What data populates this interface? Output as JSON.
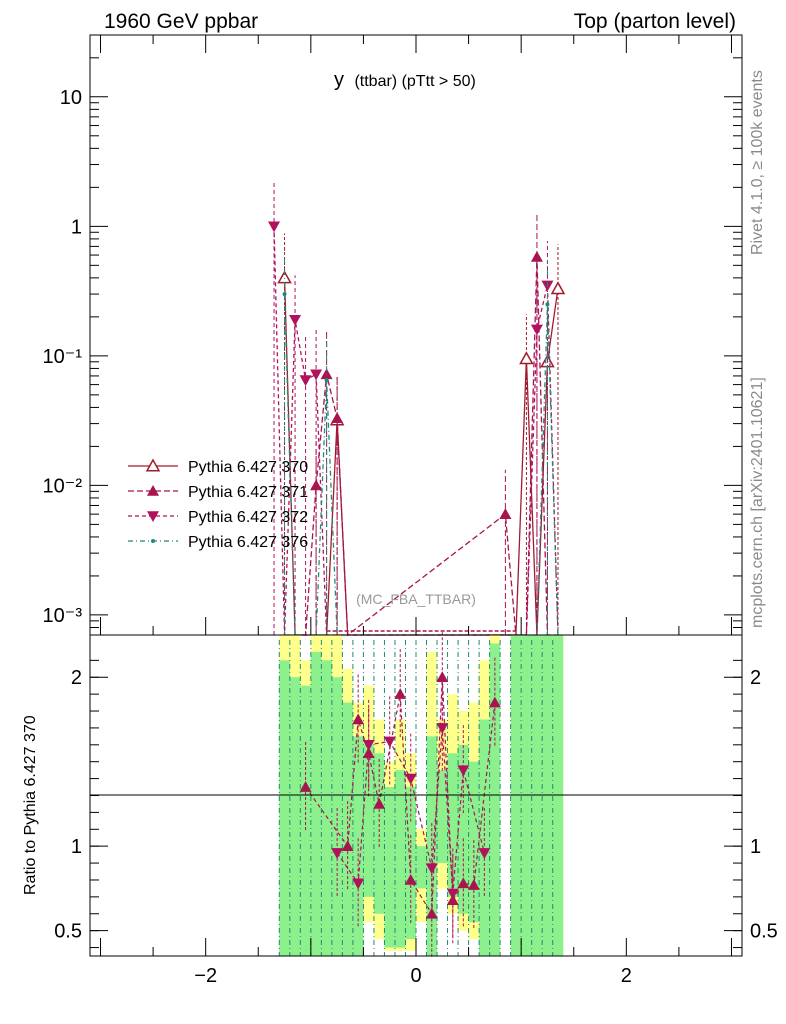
{
  "header": {
    "left": "1960 GeV ppbar",
    "right": "Top (parton level)"
  },
  "plot_title": {
    "main": "y",
    "sub": "(ttbar)  (pTtt > 50)"
  },
  "side_labels": {
    "rivet": "Rivet 4.1.0, ≥ 100k events",
    "mcplots": "mcplots.cern.ch [arXiv:2401.10621]"
  },
  "watermark": "(MC_FBA_TTBAR)",
  "ratio_ylabel": "Ratio to Pythia 6.427 370",
  "colors": {
    "s370": "#a01c2c",
    "s371": "#a8144e",
    "s372": "#b0125e",
    "s376": "#1f8a7a",
    "band_yellow": "#ffff8c",
    "band_green": "#8cf08c"
  },
  "chart_data": [
    {
      "type": "line",
      "panel": "main",
      "yscale": "log",
      "xlim": [
        -3.1,
        3.1
      ],
      "ylim": [
        0.0007,
        30
      ],
      "xlabel": "",
      "ylabel": "",
      "y_ticks": [
        {
          "value": 0.001,
          "label": "10⁻³"
        },
        {
          "value": 0.01,
          "label": "10⁻²"
        },
        {
          "value": 0.1,
          "label": "10⁻¹"
        },
        {
          "value": 1,
          "label": "1"
        },
        {
          "value": 10,
          "label": "10"
        }
      ],
      "series": [
        {
          "name": "Pythia 6.427 370",
          "key": "s370",
          "marker": "triangle-open",
          "dash": "",
          "x": [
            -1.25,
            -1.15,
            -1.05,
            -0.95,
            -0.85,
            -0.75,
            -0.65,
            0.95,
            1.05,
            1.15,
            1.25,
            1.35
          ],
          "values": [
            0.4,
            0.0007,
            0.0007,
            0.0007,
            0.0007,
            0.032,
            0.0007,
            0.0007,
            0.095,
            0.0007,
            0.09,
            0.33
          ]
        },
        {
          "name": "Pythia 6.427 371",
          "key": "s371",
          "marker": "triangle-up",
          "dash": "6,3",
          "x": [
            -1.25,
            -1.15,
            -1.05,
            -0.95,
            -0.85,
            -0.75,
            -0.65,
            0.85,
            0.95,
            1.05,
            1.15,
            1.25,
            1.35
          ],
          "values": [
            0.0007,
            0.0007,
            0.0007,
            0.01,
            0.072,
            0.033,
            0.0007,
            0.006,
            0.0007,
            0.0007,
            0.58,
            0.0007,
            0.0007
          ]
        },
        {
          "name": "Pythia 6.427 372",
          "key": "s372",
          "marker": "triangle-down",
          "dash": "4,3",
          "x": [
            -1.35,
            -1.25,
            -1.15,
            -1.05,
            -0.95,
            -0.85,
            -0.75,
            0.95,
            1.05,
            1.15,
            1.25,
            1.35
          ],
          "values": [
            1.0,
            0.0007,
            0.19,
            0.065,
            0.072,
            0.0007,
            0.0007,
            0.0007,
            0.0007,
            0.16,
            0.35,
            0.0007
          ]
        },
        {
          "name": "Pythia 6.427 376",
          "key": "s376",
          "marker": "dot",
          "dash": "5,3,1,3",
          "x": [
            -1.25,
            -1.15,
            -1.05,
            -0.95,
            -0.85,
            -0.75,
            0.95,
            1.05,
            1.15,
            1.25,
            1.35
          ],
          "values": [
            0.3,
            0.0007,
            0.0007,
            0.0007,
            0.065,
            0.0007,
            0.0007,
            0.0007,
            0.0007,
            0.25,
            0.0007
          ]
        }
      ]
    },
    {
      "type": "line",
      "panel": "ratio",
      "xlim": [
        -3.1,
        3.1
      ],
      "ylim": [
        0.35,
        2.25
      ],
      "ylabel": "Ratio to Pythia 6.427 370",
      "x_ticks": [
        {
          "value": -2,
          "label": "−2"
        },
        {
          "value": 0,
          "label": "0"
        },
        {
          "value": 2,
          "label": "2"
        }
      ],
      "y_ticks": [
        {
          "value": 0.5,
          "label": "0.5"
        },
        {
          "value": 1,
          "label": "1"
        },
        {
          "value": 2,
          "label": "2"
        }
      ],
      "series": [
        {
          "name": "Pythia 6.427 371",
          "key": "s371",
          "marker": "triangle-up",
          "x": [
            -1.05,
            -0.65,
            -0.55,
            -0.45,
            -0.35,
            -0.15,
            -0.05,
            0.15,
            0.25,
            0.35,
            0.45,
            0.55,
            0.75
          ],
          "values": [
            1.35,
            1.0,
            1.75,
            1.55,
            1.25,
            1.9,
            0.8,
            0.6,
            2.0,
            0.68,
            0.78,
            0.77,
            1.85
          ]
        },
        {
          "name": "Pythia 6.427 372",
          "key": "s372",
          "marker": "triangle-down",
          "x": [
            -0.75,
            -0.55,
            -0.45,
            -0.25,
            -0.05,
            0.15,
            0.25,
            0.35,
            0.45,
            0.65
          ],
          "values": [
            0.96,
            0.78,
            1.6,
            1.62,
            1.4,
            0.87,
            1.7,
            0.72,
            1.45,
            0.96
          ]
        }
      ],
      "bands": [
        {
          "name": "yellow",
          "key": "band_yellow",
          "x": [
            -1.3,
            -1.2,
            -1.1,
            -1.0,
            -0.9,
            -0.8,
            -0.7,
            -0.6,
            -0.5,
            -0.4,
            -0.3,
            -0.2,
            -0.1,
            0.0,
            0.1,
            0.2,
            0.3,
            0.4,
            0.5,
            0.6,
            0.7,
            0.9,
            1.0,
            1.1,
            1.2,
            1.3
          ],
          "low": [
            0.35,
            0.35,
            0.35,
            0.35,
            0.35,
            0.35,
            0.35,
            0.35,
            0.55,
            0.45,
            0.38,
            0.38,
            0.38,
            0.55,
            0.35,
            0.75,
            0.6,
            0.5,
            0.45,
            0.35,
            0.35,
            0.35,
            0.35,
            0.35,
            0.35,
            0.35
          ],
          "high": [
            2.25,
            2.25,
            2.1,
            2.25,
            2.25,
            2.25,
            2.05,
            1.85,
            1.95,
            1.75,
            1.5,
            1.75,
            1.55,
            1.1,
            2.15,
            1.75,
            1.9,
            1.8,
            1.85,
            2.1,
            2.25,
            2.25,
            2.25,
            2.25,
            2.25,
            2.25
          ]
        },
        {
          "name": "green",
          "key": "band_green",
          "x": [
            -1.3,
            -1.2,
            -1.1,
            -1.0,
            -0.9,
            -0.8,
            -0.7,
            -0.6,
            -0.5,
            -0.4,
            -0.3,
            -0.2,
            -0.1,
            0.0,
            0.1,
            0.2,
            0.3,
            0.4,
            0.5,
            0.6,
            0.7,
            0.9,
            1.0,
            1.1,
            1.2,
            1.3
          ],
          "low": [
            0.35,
            0.35,
            0.35,
            0.35,
            0.35,
            0.35,
            0.35,
            0.35,
            0.7,
            0.6,
            0.4,
            0.4,
            0.45,
            0.75,
            0.35,
            0.9,
            0.7,
            0.6,
            0.55,
            0.35,
            0.35,
            0.35,
            0.35,
            0.35,
            0.35,
            0.35
          ],
          "high": [
            2.1,
            2.0,
            1.95,
            2.15,
            2.1,
            2.0,
            1.85,
            1.65,
            1.6,
            1.55,
            1.35,
            1.45,
            1.35,
            1.0,
            1.65,
            1.45,
            1.55,
            1.6,
            1.5,
            1.75,
            2.2,
            2.25,
            2.25,
            2.25,
            2.25,
            2.25
          ]
        }
      ]
    }
  ]
}
